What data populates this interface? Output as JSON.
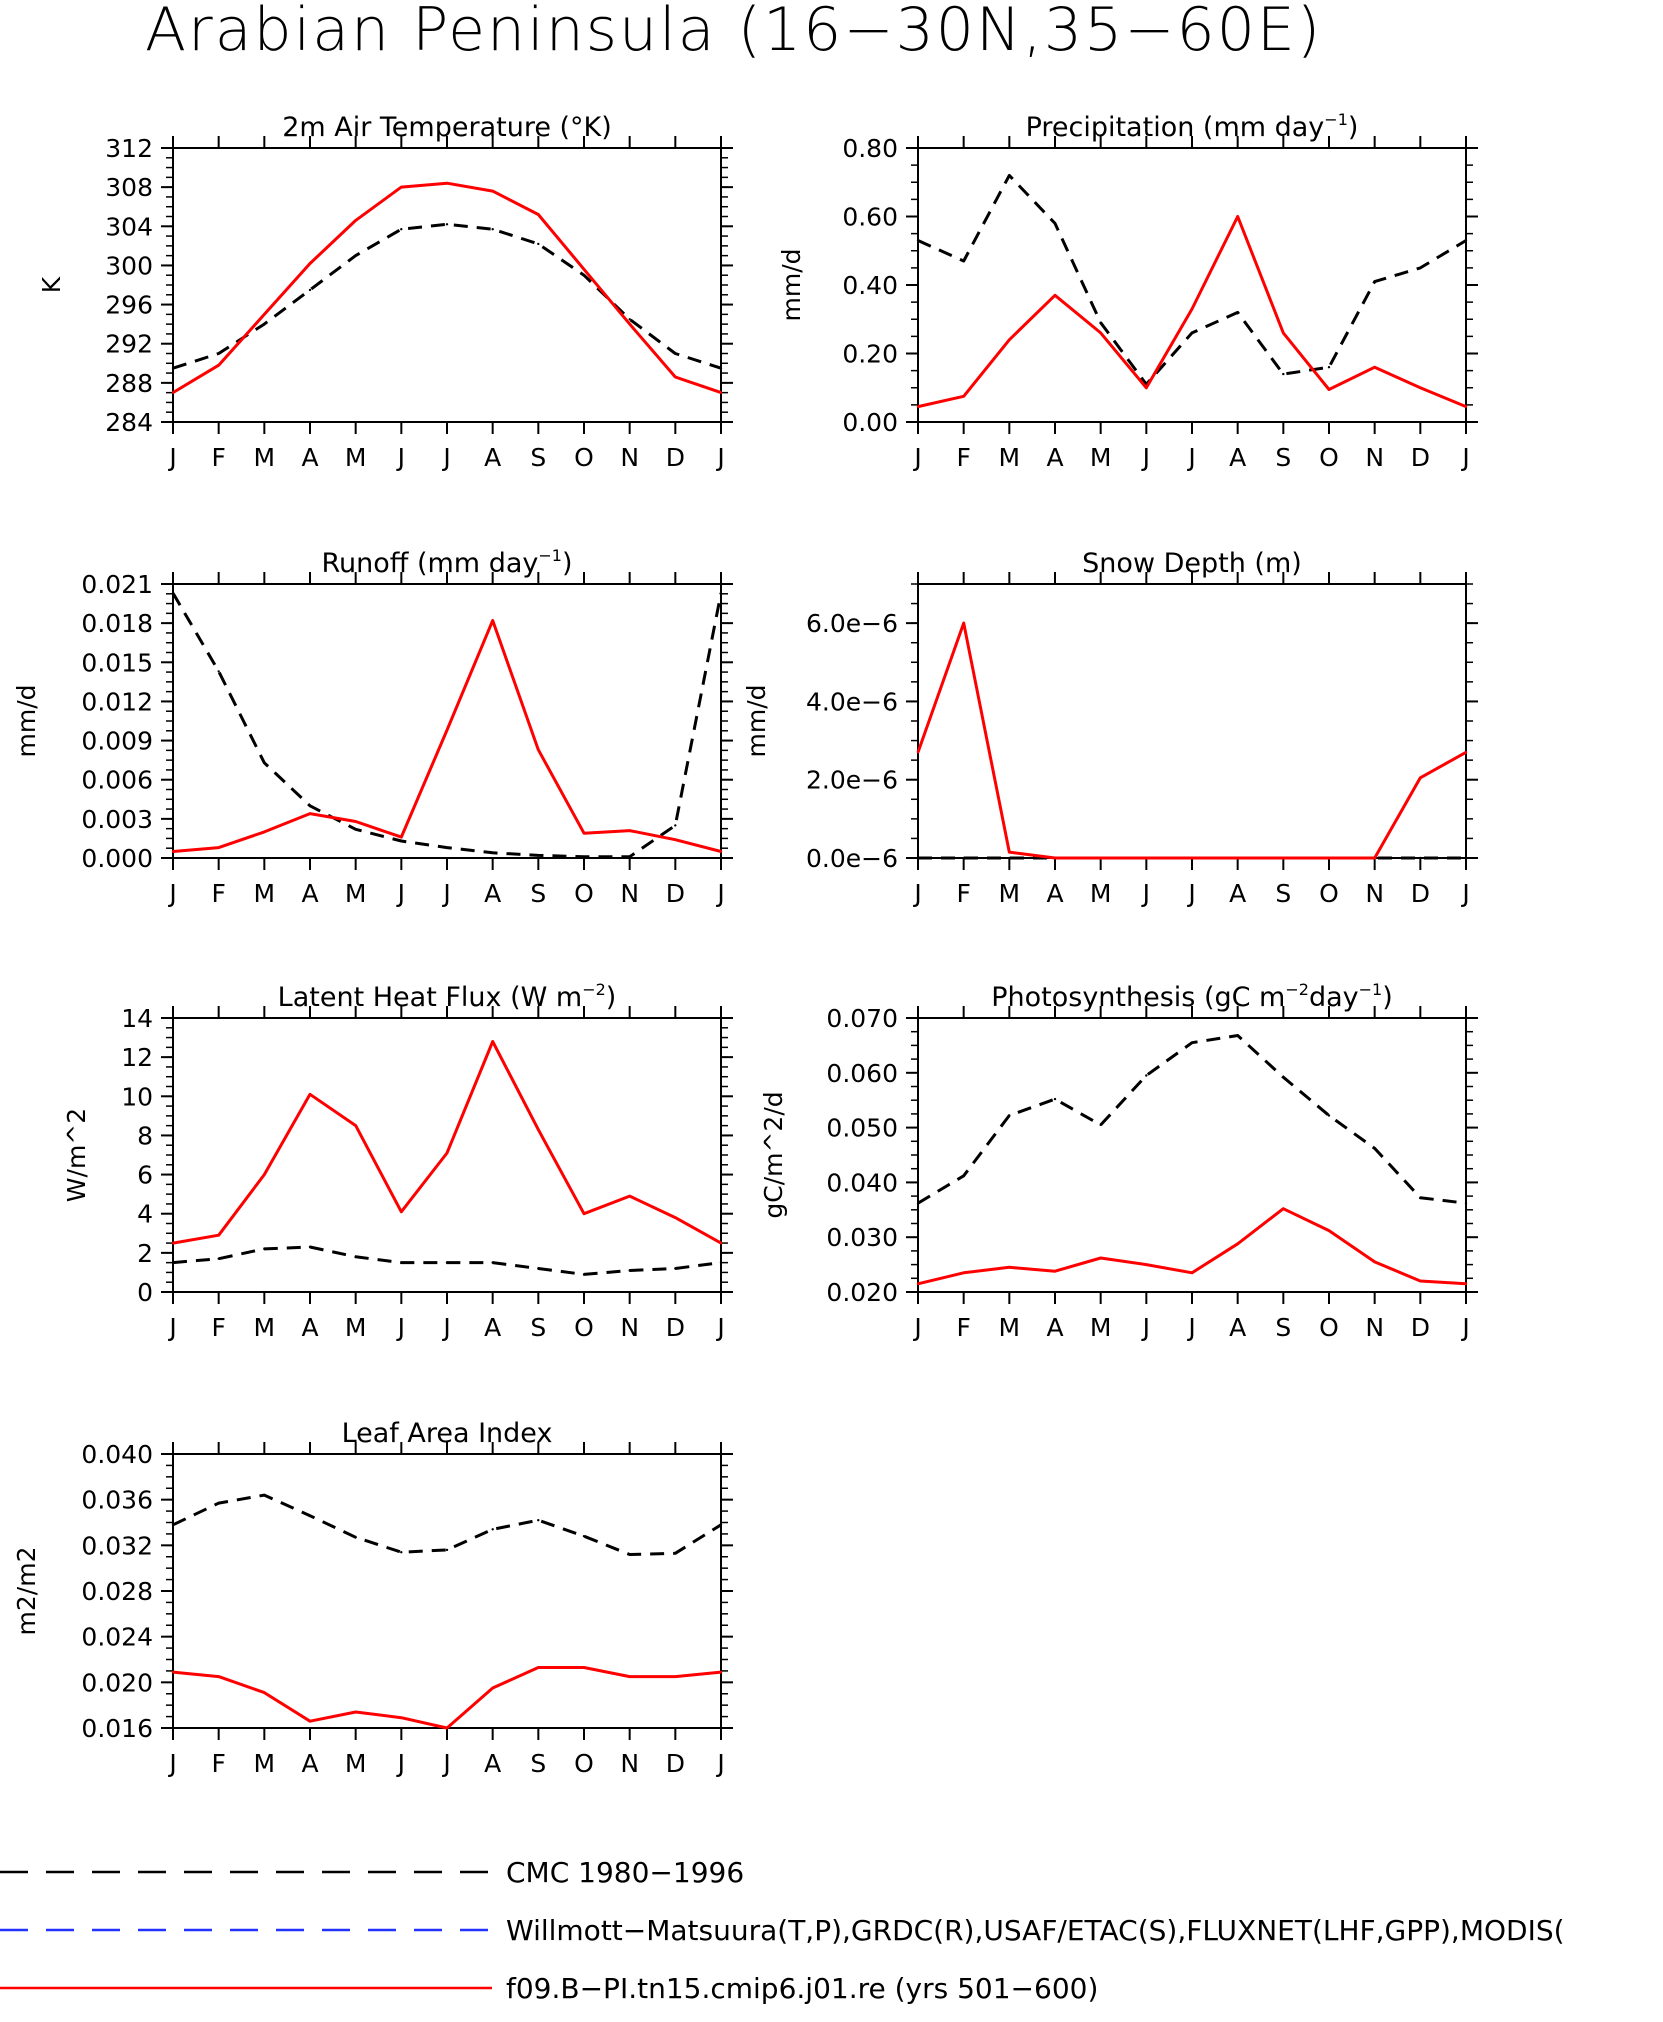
{
  "title": "Arabian Peninsula (16−30N,35−60E)",
  "months": [
    "J",
    "F",
    "M",
    "A",
    "M",
    "J",
    "J",
    "A",
    "S",
    "O",
    "N",
    "D",
    "J"
  ],
  "colors": {
    "obs": "#000000",
    "model": "#ff0000",
    "obs2": "#2233ff"
  },
  "legend": [
    {
      "label": "CMC 1980−1996",
      "color": "#000000",
      "style": "dashed"
    },
    {
      "label": "Willmott−Matsuura(T,P),GRDC(R),USAF/ETAC(S),FLUXNET(LHF,GPP),MODIS(",
      "color": "#2233ff",
      "style": "dashed"
    },
    {
      "label": "f09.B−PI.tn15.cmip6.j01.re (yrs 501−600)",
      "color": "#ff0000",
      "style": "solid"
    }
  ],
  "chart_data": [
    {
      "type": "line",
      "title": "2m Air Temperature (°K)",
      "ylabel": "K",
      "ylim": [
        284,
        312
      ],
      "yticks": [
        "284",
        "288",
        "292",
        "296",
        "300",
        "304",
        "308",
        "312"
      ],
      "x": [
        "J",
        "F",
        "M",
        "A",
        "M",
        "J",
        "J",
        "A",
        "S",
        "O",
        "N",
        "D",
        "J"
      ],
      "series": [
        {
          "name": "CMC 1980−1996",
          "style": "dashed",
          "values": [
            289.5,
            291.0,
            294.0,
            297.5,
            301.0,
            303.7,
            304.2,
            303.7,
            302.2,
            299.0,
            294.5,
            291.0,
            289.5
          ]
        },
        {
          "name": "f09.B−PI.tn15.cmip6.j01.re (yrs 501−600)",
          "style": "solid",
          "values": [
            287.0,
            289.8,
            295.0,
            300.2,
            304.6,
            308.0,
            308.4,
            307.6,
            305.2,
            299.6,
            294.0,
            288.6,
            287.0
          ]
        }
      ]
    },
    {
      "type": "line",
      "title": "Precipitation (mm day",
      "title_sup": "−1",
      "title_end": ")",
      "ylabel": "mm/d",
      "ylim": [
        0.0,
        0.8
      ],
      "yticks": [
        "0.00",
        "0.20",
        "0.40",
        "0.60",
        "0.80"
      ],
      "x": [
        "J",
        "F",
        "M",
        "A",
        "M",
        "J",
        "J",
        "A",
        "S",
        "O",
        "N",
        "D",
        "J"
      ],
      "series": [
        {
          "name": "CMC 1980−1996",
          "style": "dashed",
          "values": [
            0.53,
            0.47,
            0.72,
            0.58,
            0.29,
            0.11,
            0.26,
            0.32,
            0.14,
            0.16,
            0.41,
            0.45,
            0.53
          ]
        },
        {
          "name": "f09.B−PI.tn15.cmip6.j01.re (yrs 501−600)",
          "style": "solid",
          "values": [
            0.045,
            0.075,
            0.24,
            0.37,
            0.26,
            0.1,
            0.33,
            0.6,
            0.26,
            0.095,
            0.16,
            0.1,
            0.045
          ]
        }
      ]
    },
    {
      "type": "line",
      "title": "Runoff (mm day",
      "title_sup": "−1",
      "title_end": ")",
      "ylabel": "mm/d",
      "ylim": [
        0.0,
        0.021
      ],
      "yticks": [
        "0.000",
        "0.003",
        "0.006",
        "0.009",
        "0.012",
        "0.015",
        "0.018",
        "0.021"
      ],
      "x": [
        "J",
        "F",
        "M",
        "A",
        "M",
        "J",
        "J",
        "A",
        "S",
        "O",
        "N",
        "D",
        "J"
      ],
      "series": [
        {
          "name": "CMC 1980−1996",
          "style": "dashed",
          "values": [
            0.0203,
            0.0143,
            0.0073,
            0.004,
            0.0022,
            0.0013,
            0.0008,
            0.0004,
            0.0002,
            0.0001,
            0.0001,
            0.0025,
            0.0203
          ]
        },
        {
          "name": "f09.B−PI.tn15.cmip6.j01.re (yrs 501−600)",
          "style": "solid",
          "values": [
            0.0005,
            0.0008,
            0.002,
            0.0034,
            0.0028,
            0.0016,
            0.0098,
            0.0182,
            0.0083,
            0.0019,
            0.0021,
            0.0014,
            0.0005
          ]
        }
      ]
    },
    {
      "type": "line",
      "title": "Snow Depth (m)",
      "ylabel": "mm/d",
      "ylim": [
        0,
        7e-06
      ],
      "yticks": [
        "0.0e−6",
        "2.0e−6",
        "4.0e−6",
        "6.0e−6"
      ],
      "ytick_values": [
        0,
        2e-06,
        4e-06,
        6e-06
      ],
      "x": [
        "J",
        "F",
        "M",
        "A",
        "M",
        "J",
        "J",
        "A",
        "S",
        "O",
        "N",
        "D",
        "J"
      ],
      "series": [
        {
          "name": "CMC 1980−1996",
          "style": "dashed",
          "values": [
            0,
            0,
            0,
            0,
            0,
            0,
            0,
            0,
            0,
            0,
            0,
            0,
            0
          ]
        },
        {
          "name": "f09.B−PI.tn15.cmip6.j01.re (yrs 501−600)",
          "style": "solid",
          "values": [
            2.7e-06,
            6e-06,
            1.5e-07,
            0,
            0,
            0,
            0,
            0,
            0,
            0,
            0,
            2.05e-06,
            2.7e-06
          ]
        }
      ]
    },
    {
      "type": "line",
      "title": "Latent Heat Flux (W m",
      "title_sup": "−2",
      "title_end": ")",
      "ylabel": "W/m^2",
      "ylim": [
        0,
        14
      ],
      "yticks": [
        "0",
        "2",
        "4",
        "6",
        "8",
        "10",
        "12",
        "14"
      ],
      "x": [
        "J",
        "F",
        "M",
        "A",
        "M",
        "J",
        "J",
        "A",
        "S",
        "O",
        "N",
        "D",
        "J"
      ],
      "series": [
        {
          "name": "CMC 1980−1996",
          "style": "dashed",
          "values": [
            1.5,
            1.7,
            2.2,
            2.3,
            1.8,
            1.5,
            1.5,
            1.5,
            1.2,
            0.9,
            1.1,
            1.2,
            1.5
          ]
        },
        {
          "name": "f09.B−PI.tn15.cmip6.j01.re (yrs 501−600)",
          "style": "solid",
          "values": [
            2.5,
            2.9,
            6.0,
            10.1,
            8.5,
            4.1,
            7.1,
            12.8,
            8.3,
            4.0,
            4.9,
            3.8,
            2.5
          ]
        }
      ]
    },
    {
      "type": "line",
      "title": "Photosynthesis (gC m",
      "title_sup": "−2",
      "title_mid": "day",
      "title_sup2": "−1",
      "title_end": ")",
      "ylabel": "gC/m^2/d",
      "ylim": [
        0.02,
        0.07
      ],
      "yticks": [
        "0.020",
        "0.030",
        "0.040",
        "0.050",
        "0.060",
        "0.070"
      ],
      "x": [
        "J",
        "F",
        "M",
        "A",
        "M",
        "J",
        "J",
        "A",
        "S",
        "O",
        "N",
        "D",
        "J"
      ],
      "series": [
        {
          "name": "CMC 1980−1996",
          "style": "dashed",
          "values": [
            0.0362,
            0.0412,
            0.0522,
            0.0552,
            0.0505,
            0.0595,
            0.0655,
            0.0668,
            0.0592,
            0.0522,
            0.0462,
            0.0372,
            0.0362
          ]
        },
        {
          "name": "f09.B−PI.tn15.cmip6.j01.re (yrs 501−600)",
          "style": "solid",
          "values": [
            0.0215,
            0.0235,
            0.0245,
            0.0238,
            0.0262,
            0.025,
            0.0235,
            0.0288,
            0.0352,
            0.0312,
            0.0255,
            0.022,
            0.0215
          ]
        }
      ]
    },
    {
      "type": "line",
      "title": "Leaf Area Index",
      "ylabel": "m2/m2",
      "ylim": [
        0.016,
        0.04
      ],
      "yticks": [
        "0.016",
        "0.020",
        "0.024",
        "0.028",
        "0.032",
        "0.036",
        "0.040"
      ],
      "x": [
        "J",
        "F",
        "M",
        "A",
        "M",
        "J",
        "J",
        "A",
        "S",
        "O",
        "N",
        "D",
        "J"
      ],
      "series": [
        {
          "name": "CMC 1980−1996",
          "style": "dashed",
          "values": [
            0.0338,
            0.0357,
            0.0364,
            0.0346,
            0.0327,
            0.0314,
            0.0316,
            0.0334,
            0.0342,
            0.0328,
            0.0312,
            0.0313,
            0.0338
          ]
        },
        {
          "name": "f09.B−PI.tn15.cmip6.j01.re (yrs 501−600)",
          "style": "solid",
          "values": [
            0.0209,
            0.0205,
            0.0191,
            0.0166,
            0.0174,
            0.0169,
            0.016,
            0.0195,
            0.0213,
            0.0213,
            0.0205,
            0.0205,
            0.0209
          ]
        }
      ]
    }
  ]
}
